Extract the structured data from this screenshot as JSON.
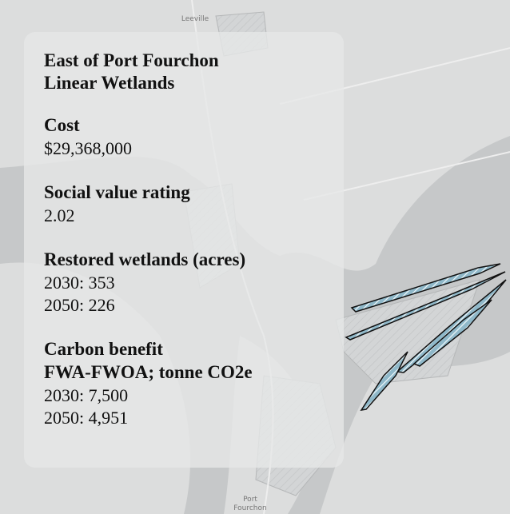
{
  "map": {
    "labels": [
      "Leeville",
      "Port",
      "Fourchon"
    ]
  },
  "panel": {
    "title": [
      "East of Port Fourchon",
      "Linear Wetlands"
    ],
    "sections": [
      {
        "heading": [
          "Cost"
        ],
        "lines": [
          "$29,368,000"
        ]
      },
      {
        "heading": [
          "Social value rating"
        ],
        "lines": [
          "2.02"
        ]
      },
      {
        "heading": [
          "Restored wetlands (acres)"
        ],
        "lines": [
          "2030: 353",
          "2050: 226"
        ]
      },
      {
        "heading": [
          "Carbon benefit",
          "FWA-FWOA; tonne CO2e"
        ],
        "lines": [
          "2030: 7,500",
          "2050: 4,951"
        ]
      }
    ]
  }
}
